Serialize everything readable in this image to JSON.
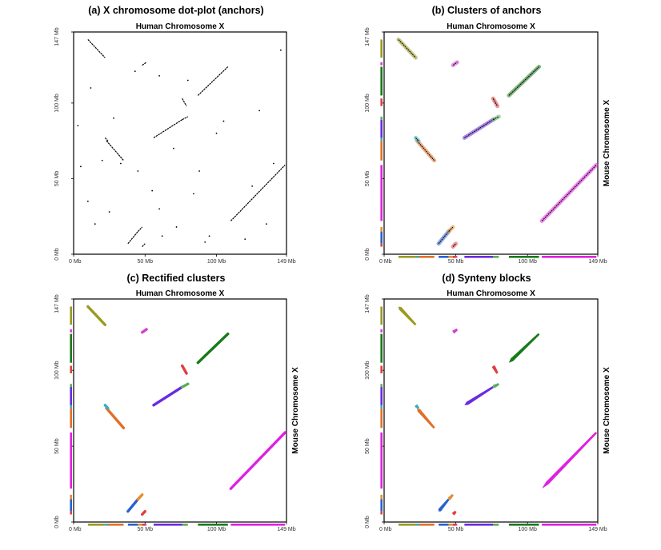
{
  "chart_data": [
    {
      "type": "scatter",
      "title": "(a) X chromosome dot-plot (anchors)",
      "top_label": "Human Chromosome X",
      "right_label": "",
      "x_ticks": [
        "0 Mb",
        "50 Mb",
        "100 Mb",
        "149 Mb"
      ],
      "y_ticks": [
        "0 Mb",
        "50 Mb",
        "100 Mb",
        "147 Mb"
      ],
      "x_tick_values": [
        0,
        50,
        100,
        149
      ],
      "y_tick_values": [
        0,
        50,
        100,
        147
      ],
      "xlim": [
        0,
        149
      ],
      "ylim": [
        0,
        147
      ],
      "style": "anchors",
      "margin_bars": false
    },
    {
      "type": "scatter",
      "title": "(b) Clusters of anchors",
      "top_label": "Human Chromosome X",
      "right_label": "Mouse Chromosome X",
      "x_ticks": [
        "0 Mb",
        "50 Mb",
        "100 Mb",
        "149 Mb"
      ],
      "y_ticks": [
        "0 Mb",
        "50 Mb",
        "100 Mb",
        "147 Mb"
      ],
      "x_tick_values": [
        0,
        50,
        100,
        149
      ],
      "y_tick_values": [
        0,
        50,
        100,
        147
      ],
      "xlim": [
        0,
        149
      ],
      "ylim": [
        0,
        147
      ],
      "style": "clusters",
      "margin_bars": true
    },
    {
      "type": "scatter",
      "title": "(c) Rectified clusters",
      "top_label": "Human Chromosome X",
      "right_label": "Mouse Chromosome X",
      "x_ticks": [
        "0 Mb",
        "50 Mb",
        "100 Mb",
        "149 Mb"
      ],
      "y_ticks": [
        "0 Mb",
        "50 Mb",
        "100 Mb",
        "147 Mb"
      ],
      "x_tick_values": [
        0,
        50,
        100,
        149
      ],
      "y_tick_values": [
        0,
        50,
        100,
        147
      ],
      "xlim": [
        0,
        149
      ],
      "ylim": [
        0,
        147
      ],
      "style": "rectified",
      "margin_bars": true
    },
    {
      "type": "scatter",
      "title": "(d) Synteny blocks",
      "top_label": "Human Chromosome X",
      "right_label": "Mouse Chromosome X",
      "x_ticks": [
        "0 Mb",
        "50 Mb",
        "100 Mb",
        "149 Mb"
      ],
      "y_ticks": [
        "0 Mb",
        "50 Mb",
        "100 Mb",
        "147 Mb"
      ],
      "x_tick_values": [
        0,
        50,
        100,
        149
      ],
      "y_tick_values": [
        0,
        50,
        100,
        147
      ],
      "xlim": [
        0,
        149
      ],
      "ylim": [
        0,
        147
      ],
      "style": "blocks",
      "margin_bars": true
    }
  ],
  "segments": [
    {
      "color": "#9a9a20",
      "x": [
        10,
        22
      ],
      "y": [
        142,
        130
      ]
    },
    {
      "color": "#d040d0",
      "x": [
        48,
        51
      ],
      "y": [
        125,
        127
      ]
    },
    {
      "color": "#1a7a1a",
      "x": [
        87,
        108
      ],
      "y": [
        105,
        124
      ]
    },
    {
      "color": "#e04040",
      "x": [
        76,
        79
      ],
      "y": [
        103,
        98
      ]
    },
    {
      "color": "#6a2ae0",
      "x": [
        56,
        76
      ],
      "y": [
        77,
        89
      ]
    },
    {
      "color": "#5ab05a",
      "x": [
        76,
        80
      ],
      "y": [
        89,
        91
      ]
    },
    {
      "color": "#e07028",
      "x": [
        23,
        35
      ],
      "y": [
        75,
        62
      ]
    },
    {
      "color": "#30b0c0",
      "x": [
        22,
        24
      ],
      "y": [
        77,
        75
      ]
    },
    {
      "color": "#e020e0",
      "x": [
        110,
        148
      ],
      "y": [
        22,
        59
      ]
    },
    {
      "color": "#2a60d0",
      "x": [
        38,
        45
      ],
      "y": [
        7,
        15
      ]
    },
    {
      "color": "#e09030",
      "x": [
        45,
        48
      ],
      "y": [
        15,
        18
      ]
    },
    {
      "color": "#e04040",
      "x": [
        48,
        50
      ],
      "y": [
        5,
        7
      ]
    }
  ],
  "scattered_anchors": [
    [
      5,
      58
    ],
    [
      12,
      110
    ],
    [
      15,
      20
    ],
    [
      20,
      62
    ],
    [
      28,
      90
    ],
    [
      33,
      60
    ],
    [
      43,
      121
    ],
    [
      45,
      55
    ],
    [
      55,
      42
    ],
    [
      60,
      118
    ],
    [
      62,
      12
    ],
    [
      70,
      70
    ],
    [
      72,
      18
    ],
    [
      80,
      115
    ],
    [
      84,
      40
    ],
    [
      88,
      55
    ],
    [
      92,
      8
    ],
    [
      95,
      12
    ],
    [
      100,
      80
    ],
    [
      105,
      88
    ],
    [
      120,
      10
    ],
    [
      125,
      45
    ],
    [
      130,
      95
    ],
    [
      135,
      20
    ],
    [
      140,
      60
    ],
    [
      3,
      85
    ],
    [
      145,
      135
    ],
    [
      25,
      28
    ],
    [
      10,
      35
    ],
    [
      60,
      30
    ]
  ]
}
